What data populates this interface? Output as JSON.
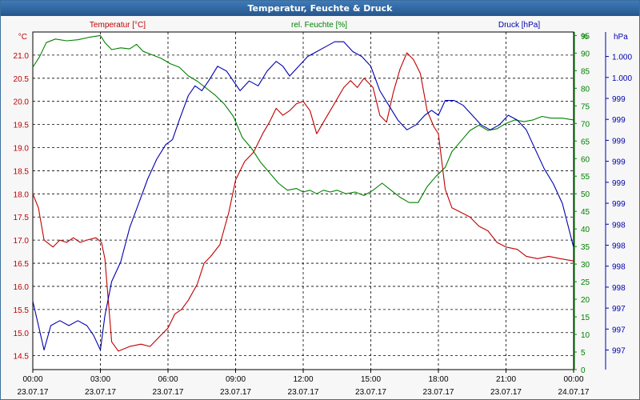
{
  "window": {
    "title": "Temperatur, Feuchte & Druck"
  },
  "colors": {
    "temperature": "#c00000",
    "humidity": "#008000",
    "pressure": "#0000b0",
    "grid": "#000000"
  },
  "chart_data": {
    "type": "line",
    "title": "Temperatur, Feuchte & Druck",
    "x_tick_labels": [
      {
        "time": "00:00",
        "date": "23.07.17"
      },
      {
        "time": "03:00",
        "date": "23.07.17"
      },
      {
        "time": "06:00",
        "date": "23.07.17"
      },
      {
        "time": "09:00",
        "date": "23.07.17"
      },
      {
        "time": "12:00",
        "date": "23.07.17"
      },
      {
        "time": "15:00",
        "date": "23.07.17"
      },
      {
        "time": "18:00",
        "date": "23.07.17"
      },
      {
        "time": "21:00",
        "date": "23.07.17"
      },
      {
        "time": "00:00",
        "date": "24.07.17"
      }
    ],
    "x_range_hours": [
      0,
      24
    ],
    "axes": {
      "temperature": {
        "header": "Temperatur [°C]",
        "unit": "°C",
        "range": [
          14.2,
          21.5
        ],
        "ticks": [
          "21.0",
          "20.5",
          "20.0",
          "19.5",
          "19.0",
          "18.5",
          "18.0",
          "17.5",
          "17.0",
          "16.5",
          "16.0",
          "15.5",
          "15.0",
          "14.5"
        ]
      },
      "humidity": {
        "header": "rel. Feuchte [%]",
        "unit": "%",
        "range": [
          0,
          96
        ],
        "ticks": [
          "95",
          "90",
          "85",
          "80",
          "75",
          "70",
          "65",
          "60",
          "55",
          "50",
          "45",
          "40",
          "35",
          "30",
          "25",
          "20",
          "15",
          "10",
          "5",
          "0"
        ]
      },
      "pressure": {
        "header": "Druck [hPa]",
        "unit": "hPa",
        "range": [
          996.85,
          1000.3
        ],
        "ticks": [
          "1.000",
          "1.000",
          "999",
          "999",
          "999",
          "999",
          "999",
          "999",
          "998",
          "998",
          "998",
          "998",
          "997",
          "997",
          "997"
        ]
      }
    },
    "series": [
      {
        "name": "Temperatur",
        "axis": "temperature",
        "points": [
          [
            0,
            18.0
          ],
          [
            0.25,
            17.7
          ],
          [
            0.5,
            17.0
          ],
          [
            0.9,
            16.85
          ],
          [
            1.2,
            17.0
          ],
          [
            1.5,
            16.95
          ],
          [
            1.8,
            17.05
          ],
          [
            2.1,
            16.95
          ],
          [
            2.4,
            17.0
          ],
          [
            2.8,
            17.05
          ],
          [
            3.05,
            16.95
          ],
          [
            3.2,
            16.6
          ],
          [
            3.5,
            14.8
          ],
          [
            3.8,
            14.6
          ],
          [
            4.3,
            14.7
          ],
          [
            4.8,
            14.75
          ],
          [
            5.2,
            14.7
          ],
          [
            5.6,
            14.9
          ],
          [
            6.0,
            15.1
          ],
          [
            6.3,
            15.4
          ],
          [
            6.6,
            15.5
          ],
          [
            6.9,
            15.7
          ],
          [
            7.3,
            16.05
          ],
          [
            7.6,
            16.5
          ],
          [
            7.9,
            16.65
          ],
          [
            8.3,
            16.9
          ],
          [
            8.7,
            17.6
          ],
          [
            9.0,
            18.3
          ],
          [
            9.4,
            18.7
          ],
          [
            9.8,
            18.9
          ],
          [
            10.2,
            19.3
          ],
          [
            10.5,
            19.55
          ],
          [
            10.8,
            19.85
          ],
          [
            11.1,
            19.7
          ],
          [
            11.4,
            19.8
          ],
          [
            11.7,
            19.95
          ],
          [
            12.0,
            20.0
          ],
          [
            12.3,
            19.8
          ],
          [
            12.6,
            19.3
          ],
          [
            12.9,
            19.55
          ],
          [
            13.2,
            19.8
          ],
          [
            13.5,
            20.05
          ],
          [
            13.8,
            20.3
          ],
          [
            14.1,
            20.45
          ],
          [
            14.4,
            20.3
          ],
          [
            14.7,
            20.5
          ],
          [
            15.1,
            20.3
          ],
          [
            15.4,
            19.7
          ],
          [
            15.7,
            19.55
          ],
          [
            16.0,
            20.2
          ],
          [
            16.3,
            20.7
          ],
          [
            16.6,
            21.05
          ],
          [
            16.9,
            20.9
          ],
          [
            17.2,
            20.6
          ],
          [
            17.5,
            19.8
          ],
          [
            17.8,
            19.45
          ],
          [
            18.0,
            19.3
          ],
          [
            18.3,
            18.1
          ],
          [
            18.6,
            17.7
          ],
          [
            19.0,
            17.6
          ],
          [
            19.4,
            17.5
          ],
          [
            19.8,
            17.3
          ],
          [
            20.2,
            17.2
          ],
          [
            20.6,
            16.95
          ],
          [
            21.0,
            16.85
          ],
          [
            21.5,
            16.8
          ],
          [
            21.9,
            16.65
          ],
          [
            22.4,
            16.6
          ],
          [
            22.9,
            16.65
          ],
          [
            23.4,
            16.6
          ],
          [
            24.0,
            16.55
          ]
        ]
      },
      {
        "name": "rel. Feuchte",
        "axis": "humidity",
        "points": [
          [
            0,
            86
          ],
          [
            0.3,
            89
          ],
          [
            0.6,
            93
          ],
          [
            1.0,
            94
          ],
          [
            1.5,
            93.5
          ],
          [
            2.0,
            93.8
          ],
          [
            2.5,
            94.5
          ],
          [
            3.0,
            95
          ],
          [
            3.2,
            93
          ],
          [
            3.5,
            91
          ],
          [
            3.9,
            91.5
          ],
          [
            4.3,
            91.2
          ],
          [
            4.6,
            92.5
          ],
          [
            4.9,
            90.5
          ],
          [
            5.3,
            89.5
          ],
          [
            5.7,
            88.5
          ],
          [
            6.1,
            87
          ],
          [
            6.5,
            86
          ],
          [
            6.9,
            83.5
          ],
          [
            7.3,
            82
          ],
          [
            7.7,
            80
          ],
          [
            8.1,
            78
          ],
          [
            8.5,
            75.5
          ],
          [
            8.9,
            72
          ],
          [
            9.3,
            66
          ],
          [
            9.7,
            63
          ],
          [
            10.1,
            59
          ],
          [
            10.5,
            56
          ],
          [
            10.9,
            53
          ],
          [
            11.3,
            51
          ],
          [
            11.7,
            51.5
          ],
          [
            12.0,
            50.5
          ],
          [
            12.3,
            51
          ],
          [
            12.6,
            50
          ],
          [
            12.9,
            51
          ],
          [
            13.2,
            50.5
          ],
          [
            13.5,
            51
          ],
          [
            13.9,
            50
          ],
          [
            14.3,
            50.5
          ],
          [
            14.7,
            49.5
          ],
          [
            15.1,
            51
          ],
          [
            15.5,
            53
          ],
          [
            15.9,
            51
          ],
          [
            16.3,
            49
          ],
          [
            16.7,
            47.5
          ],
          [
            17.1,
            47.5
          ],
          [
            17.5,
            52
          ],
          [
            17.9,
            55
          ],
          [
            18.3,
            57.5
          ],
          [
            18.6,
            62
          ],
          [
            19.0,
            65
          ],
          [
            19.4,
            68
          ],
          [
            19.8,
            69.5
          ],
          [
            20.2,
            68
          ],
          [
            20.6,
            68.5
          ],
          [
            21.0,
            70
          ],
          [
            21.4,
            71
          ],
          [
            21.8,
            70.5
          ],
          [
            22.2,
            71
          ],
          [
            22.6,
            72
          ],
          [
            23.0,
            71.5
          ],
          [
            23.5,
            71.5
          ],
          [
            24.0,
            71
          ]
        ]
      },
      {
        "name": "Druck",
        "axis": "pressure",
        "points": [
          [
            0,
            997.55
          ],
          [
            0.3,
            997.25
          ],
          [
            0.5,
            997.05
          ],
          [
            0.8,
            997.3
          ],
          [
            1.2,
            997.35
          ],
          [
            1.6,
            997.3
          ],
          [
            2.0,
            997.35
          ],
          [
            2.4,
            997.3
          ],
          [
            2.7,
            997.2
          ],
          [
            3.0,
            997.05
          ],
          [
            3.2,
            997.4
          ],
          [
            3.5,
            997.75
          ],
          [
            3.9,
            997.95
          ],
          [
            4.3,
            998.3
          ],
          [
            4.7,
            998.55
          ],
          [
            5.1,
            998.8
          ],
          [
            5.5,
            999.0
          ],
          [
            5.9,
            999.15
          ],
          [
            6.2,
            999.2
          ],
          [
            6.5,
            999.4
          ],
          [
            6.9,
            999.65
          ],
          [
            7.2,
            999.75
          ],
          [
            7.5,
            999.7
          ],
          [
            7.8,
            999.8
          ],
          [
            8.2,
            999.95
          ],
          [
            8.6,
            999.9
          ],
          [
            8.9,
            999.8
          ],
          [
            9.2,
            999.7
          ],
          [
            9.6,
            999.8
          ],
          [
            10.0,
            999.75
          ],
          [
            10.4,
            999.9
          ],
          [
            10.8,
            1000.0
          ],
          [
            11.1,
            999.95
          ],
          [
            11.4,
            999.85
          ],
          [
            11.8,
            999.95
          ],
          [
            12.2,
            1000.05
          ],
          [
            12.6,
            1000.1
          ],
          [
            13.0,
            1000.15
          ],
          [
            13.4,
            1000.2
          ],
          [
            13.8,
            1000.2
          ],
          [
            14.2,
            1000.1
          ],
          [
            14.6,
            1000.05
          ],
          [
            15.0,
            999.95
          ],
          [
            15.4,
            999.7
          ],
          [
            15.8,
            999.55
          ],
          [
            16.2,
            999.4
          ],
          [
            16.6,
            999.3
          ],
          [
            17.0,
            999.35
          ],
          [
            17.4,
            999.45
          ],
          [
            17.7,
            999.5
          ],
          [
            18.0,
            999.45
          ],
          [
            18.3,
            999.6
          ],
          [
            18.7,
            999.6
          ],
          [
            19.1,
            999.55
          ],
          [
            19.5,
            999.45
          ],
          [
            19.9,
            999.35
          ],
          [
            20.3,
            999.3
          ],
          [
            20.7,
            999.35
          ],
          [
            21.1,
            999.45
          ],
          [
            21.5,
            999.4
          ],
          [
            21.9,
            999.3
          ],
          [
            22.3,
            999.1
          ],
          [
            22.7,
            998.9
          ],
          [
            23.1,
            998.75
          ],
          [
            23.5,
            998.55
          ],
          [
            24.0,
            998.1
          ]
        ]
      }
    ]
  }
}
